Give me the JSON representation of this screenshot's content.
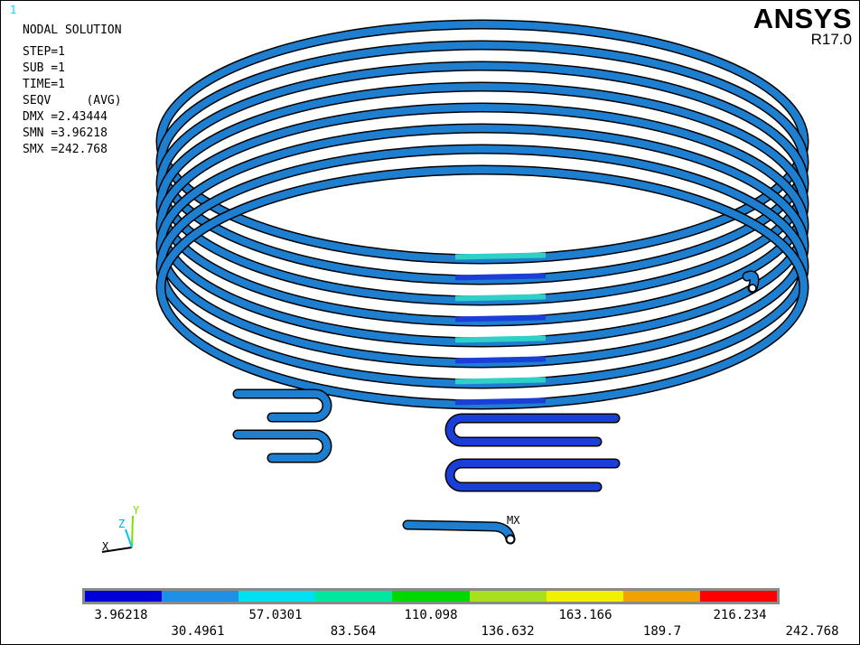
{
  "viewport": {
    "window_number": "1",
    "brand": {
      "name": "ANSYS",
      "version": "R17.0"
    }
  },
  "info": {
    "title": "NODAL SOLUTION",
    "lines": [
      "STEP=1",
      "SUB =1",
      "TIME=1",
      "SEQV     (AVG)",
      "DMX =2.43444",
      "SMN =3.96218",
      "SMX =242.768"
    ]
  },
  "model": {
    "max_marker_label": "MX",
    "tube_base_color": "#1e7fd0",
    "tube_outline_color": "#000000"
  },
  "triad": {
    "x_label": "X",
    "y_label": "Y",
    "z_label": "Z"
  },
  "legend": {
    "colors": [
      "#0000d8",
      "#1e90e8",
      "#00e0f0",
      "#00e8a0",
      "#00d800",
      "#a8e020",
      "#f0f000",
      "#f0a000",
      "#ff0000"
    ],
    "labels_top": [
      "3.96218",
      "57.0301",
      "110.098",
      "163.166",
      "216.234"
    ],
    "labels_bottom": [
      "30.4961",
      "83.564",
      "136.632",
      "189.7",
      "242.768"
    ]
  }
}
